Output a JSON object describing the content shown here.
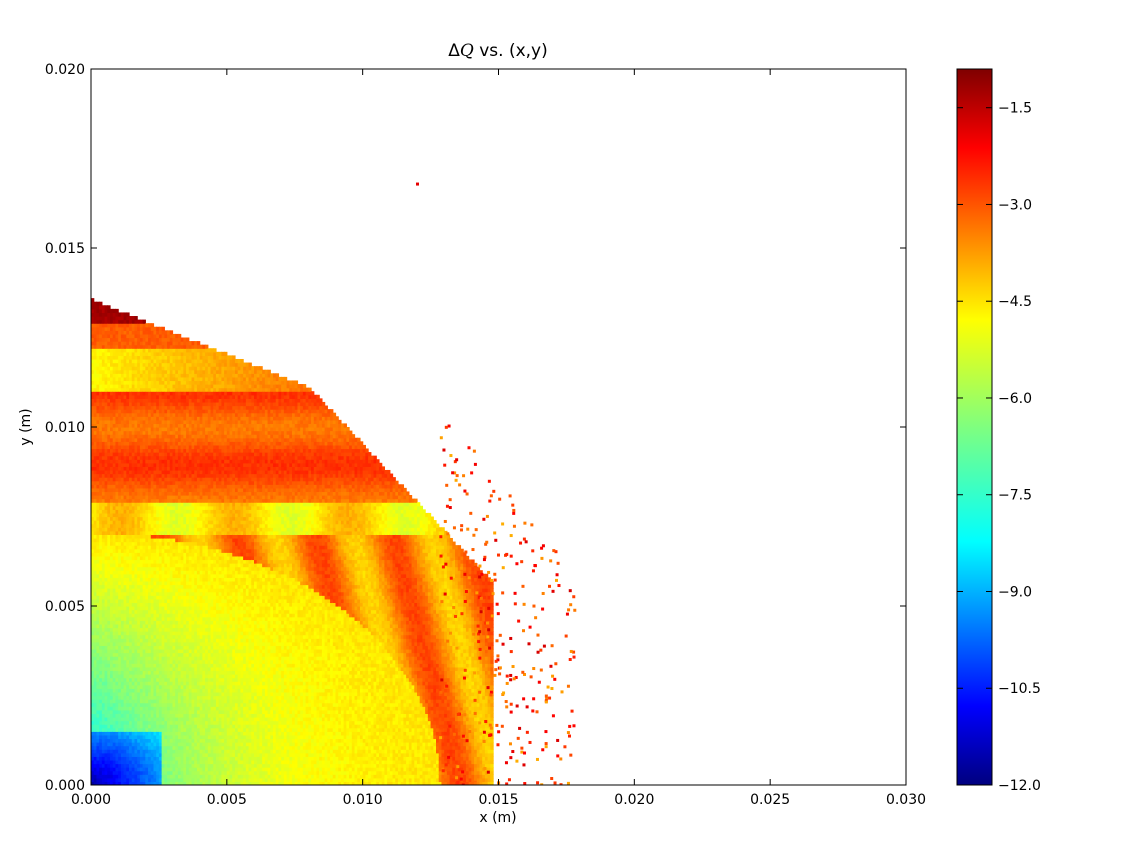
{
  "chart_data": {
    "type": "heatmap",
    "title": "ΔQ vs. (x,y)",
    "title_prefix": "Δ",
    "title_var": "Q",
    "title_suffix": " vs. (x,y)",
    "xlabel": "x (m)",
    "ylabel": "y (m)",
    "xlim": [
      0.0,
      0.03
    ],
    "ylim": [
      0.0,
      0.02
    ],
    "xticks": [
      "0.000",
      "0.005",
      "0.010",
      "0.015",
      "0.020",
      "0.025",
      "0.030"
    ],
    "yticks": [
      "0.000",
      "0.005",
      "0.010",
      "0.015",
      "0.020"
    ],
    "colorbar": {
      "colormap": "jet",
      "range": [
        -12.0,
        -0.9
      ],
      "ticks": [
        "−1.5",
        "−3.0",
        "−4.5",
        "−6.0",
        "−7.5",
        "−9.0",
        "−10.5",
        "−12.0"
      ],
      "tick_values": [
        -1.5,
        -3.0,
        -4.5,
        -6.0,
        -7.5,
        -9.0,
        -10.5,
        -12.0
      ]
    },
    "regions": [
      {
        "kind": "dense",
        "x_range": [
          0.0,
          0.0147
        ],
        "y_range": [
          0.0,
          0.0135
        ],
        "value_range": [
          -12.0,
          -1.2
        ]
      },
      {
        "kind": "scattered",
        "x_range": [
          0.013,
          0.0178
        ],
        "y_range": [
          0.0,
          0.0105
        ],
        "value_range": [
          -4.5,
          -1.5
        ]
      },
      {
        "kind": "outlier",
        "x": 0.012,
        "y": 0.0168,
        "value": -2.0
      }
    ],
    "grid": false
  }
}
